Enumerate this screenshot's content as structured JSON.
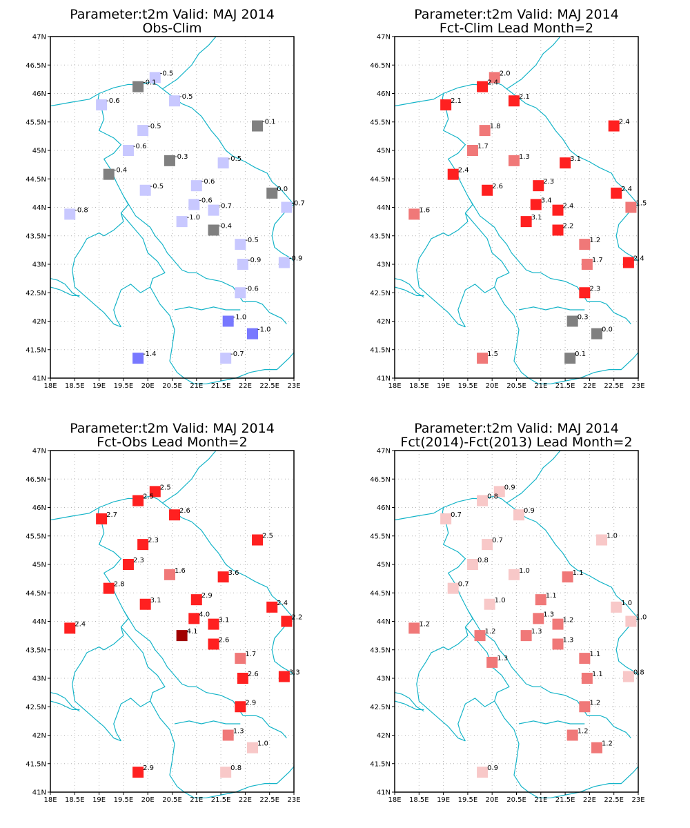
{
  "panels": [
    {
      "title1": "Parameter:t2m Valid: MAJ 2014",
      "title2": "Obs-Clim",
      "stations": [
        {
          "lon": 20.15,
          "lat": 46.28,
          "value": "-0.5",
          "color": "#c8c8ff"
        },
        {
          "lon": 19.8,
          "lat": 46.12,
          "value": "-0.1",
          "color": "#808080"
        },
        {
          "lon": 20.55,
          "lat": 45.87,
          "value": "-0.5",
          "color": "#c8c8ff"
        },
        {
          "lon": 19.05,
          "lat": 45.8,
          "value": "-0.6",
          "color": "#c8c8ff"
        },
        {
          "lon": 22.25,
          "lat": 45.43,
          "value": "-0.1",
          "color": "#808080"
        },
        {
          "lon": 19.9,
          "lat": 45.35,
          "value": "-0.5",
          "color": "#c8c8ff"
        },
        {
          "lon": 19.6,
          "lat": 45.0,
          "value": "-0.6",
          "color": "#c8c8ff"
        },
        {
          "lon": 20.45,
          "lat": 44.82,
          "value": "-0.3",
          "color": "#808080"
        },
        {
          "lon": 21.55,
          "lat": 44.78,
          "value": "-0.5",
          "color": "#c8c8ff"
        },
        {
          "lon": 19.2,
          "lat": 44.58,
          "value": "-0.4",
          "color": "#808080"
        },
        {
          "lon": 21.0,
          "lat": 44.38,
          "value": "-0.6",
          "color": "#c8c8ff"
        },
        {
          "lon": 19.95,
          "lat": 44.3,
          "value": "-0.5",
          "color": "#c8c8ff"
        },
        {
          "lon": 22.55,
          "lat": 44.25,
          "value": "0.0",
          "color": "#808080"
        },
        {
          "lon": 20.95,
          "lat": 44.05,
          "value": "-0.6",
          "color": "#c8c8ff"
        },
        {
          "lon": 22.85,
          "lat": 44.0,
          "value": "-0.7",
          "color": "#c8c8ff"
        },
        {
          "lon": 21.35,
          "lat": 43.95,
          "value": "-0.7",
          "color": "#c8c8ff"
        },
        {
          "lon": 18.4,
          "lat": 43.88,
          "value": "-0.8",
          "color": "#c8c8ff"
        },
        {
          "lon": 20.7,
          "lat": 43.75,
          "value": "-1.0",
          "color": "#c8c8ff"
        },
        {
          "lon": 21.35,
          "lat": 43.6,
          "value": "-0.4",
          "color": "#808080"
        },
        {
          "lon": 21.9,
          "lat": 43.35,
          "value": "-0.5",
          "color": "#c8c8ff"
        },
        {
          "lon": 21.95,
          "lat": 43.0,
          "value": "-0.9",
          "color": "#c8c8ff"
        },
        {
          "lon": 22.8,
          "lat": 43.03,
          "value": "-0.9",
          "color": "#c8c8ff"
        },
        {
          "lon": 21.9,
          "lat": 42.5,
          "value": "-0.6",
          "color": "#c8c8ff"
        },
        {
          "lon": 21.65,
          "lat": 42.0,
          "value": "-1.0",
          "color": "#7878ff"
        },
        {
          "lon": 22.15,
          "lat": 41.78,
          "value": "-1.0",
          "color": "#7878ff"
        },
        {
          "lon": 19.8,
          "lat": 41.35,
          "value": "-1.4",
          "color": "#7878ff"
        },
        {
          "lon": 21.6,
          "lat": 41.35,
          "value": "-0.7",
          "color": "#c8c8ff"
        }
      ]
    },
    {
      "title1": "Parameter:t2m Valid: MAJ 2014",
      "title2": "Fct-Clim Lead Month=2",
      "stations": [
        {
          "lon": 20.05,
          "lat": 46.28,
          "value": "2.0",
          "color": "#f07878"
        },
        {
          "lon": 19.8,
          "lat": 46.12,
          "value": "2.4",
          "color": "#ff2020"
        },
        {
          "lon": 20.45,
          "lat": 45.87,
          "value": "2.1",
          "color": "#ff2020"
        },
        {
          "lon": 19.05,
          "lat": 45.8,
          "value": "2.1",
          "color": "#ff2020"
        },
        {
          "lon": 22.5,
          "lat": 45.43,
          "value": "2.4",
          "color": "#ff2020"
        },
        {
          "lon": 19.85,
          "lat": 45.35,
          "value": "1.8",
          "color": "#f07878"
        },
        {
          "lon": 19.6,
          "lat": 45.0,
          "value": "1.7",
          "color": "#f07878"
        },
        {
          "lon": 20.45,
          "lat": 44.82,
          "value": "1.3",
          "color": "#f07878"
        },
        {
          "lon": 21.5,
          "lat": 44.78,
          "value": "3.1",
          "color": "#ff2020"
        },
        {
          "lon": 19.2,
          "lat": 44.58,
          "value": "2.4",
          "color": "#ff2020"
        },
        {
          "lon": 20.95,
          "lat": 44.38,
          "value": "2.3",
          "color": "#ff2020"
        },
        {
          "lon": 19.9,
          "lat": 44.3,
          "value": "2.6",
          "color": "#ff2020"
        },
        {
          "lon": 22.55,
          "lat": 44.25,
          "value": "2.4",
          "color": "#ff2020"
        },
        {
          "lon": 20.9,
          "lat": 44.05,
          "value": "3.4",
          "color": "#ff2020"
        },
        {
          "lon": 22.85,
          "lat": 44.0,
          "value": "1.5",
          "color": "#f07878"
        },
        {
          "lon": 21.35,
          "lat": 43.95,
          "value": "2.4",
          "color": "#ff2020"
        },
        {
          "lon": 18.4,
          "lat": 43.88,
          "value": "1.6",
          "color": "#f07878"
        },
        {
          "lon": 20.7,
          "lat": 43.75,
          "value": "3.1",
          "color": "#ff2020"
        },
        {
          "lon": 21.35,
          "lat": 43.6,
          "value": "2.2",
          "color": "#ff2020"
        },
        {
          "lon": 21.9,
          "lat": 43.35,
          "value": "1.2",
          "color": "#f07878"
        },
        {
          "lon": 21.95,
          "lat": 43.0,
          "value": "1.7",
          "color": "#f07878"
        },
        {
          "lon": 22.8,
          "lat": 43.03,
          "value": "2.4",
          "color": "#ff2020"
        },
        {
          "lon": 21.9,
          "lat": 42.5,
          "value": "2.3",
          "color": "#ff2020"
        },
        {
          "lon": 21.65,
          "lat": 42.0,
          "value": "0.3",
          "color": "#808080"
        },
        {
          "lon": 22.15,
          "lat": 41.78,
          "value": "0.0",
          "color": "#808080"
        },
        {
          "lon": 19.8,
          "lat": 41.35,
          "value": "1.5",
          "color": "#f07878"
        },
        {
          "lon": 21.6,
          "lat": 41.35,
          "value": "0.1",
          "color": "#808080"
        }
      ]
    },
    {
      "title1": "Parameter:t2m Valid: MAJ 2014",
      "title2": "Fct-Obs Lead Month=2",
      "stations": [
        {
          "lon": 20.15,
          "lat": 46.28,
          "value": "2.5",
          "color": "#ff2020"
        },
        {
          "lon": 19.8,
          "lat": 46.12,
          "value": "2.5",
          "color": "#ff2020"
        },
        {
          "lon": 20.55,
          "lat": 45.87,
          "value": "2.6",
          "color": "#ff2020"
        },
        {
          "lon": 19.05,
          "lat": 45.8,
          "value": "2.7",
          "color": "#ff2020"
        },
        {
          "lon": 22.25,
          "lat": 45.43,
          "value": "2.5",
          "color": "#ff2020"
        },
        {
          "lon": 19.9,
          "lat": 45.35,
          "value": "2.3",
          "color": "#ff2020"
        },
        {
          "lon": 19.6,
          "lat": 45.0,
          "value": "2.3",
          "color": "#ff2020"
        },
        {
          "lon": 20.45,
          "lat": 44.82,
          "value": "1.6",
          "color": "#f07878"
        },
        {
          "lon": 21.55,
          "lat": 44.78,
          "value": "3.6",
          "color": "#ff2020"
        },
        {
          "lon": 19.2,
          "lat": 44.58,
          "value": "2.8",
          "color": "#ff2020"
        },
        {
          "lon": 21.0,
          "lat": 44.38,
          "value": "2.9",
          "color": "#ff2020"
        },
        {
          "lon": 19.95,
          "lat": 44.3,
          "value": "3.1",
          "color": "#ff2020"
        },
        {
          "lon": 22.55,
          "lat": 44.25,
          "value": "2.4",
          "color": "#ff2020"
        },
        {
          "lon": 20.95,
          "lat": 44.05,
          "value": "4.0",
          "color": "#ff2020"
        },
        {
          "lon": 22.85,
          "lat": 44.0,
          "value": "2.2",
          "color": "#ff2020"
        },
        {
          "lon": 21.35,
          "lat": 43.95,
          "value": "3.1",
          "color": "#ff2020"
        },
        {
          "lon": 18.4,
          "lat": 43.88,
          "value": "2.4",
          "color": "#ff2020"
        },
        {
          "lon": 20.7,
          "lat": 43.75,
          "value": "4.1",
          "color": "#a00000"
        },
        {
          "lon": 21.35,
          "lat": 43.6,
          "value": "2.6",
          "color": "#ff2020"
        },
        {
          "lon": 21.9,
          "lat": 43.35,
          "value": "1.7",
          "color": "#f07878"
        },
        {
          "lon": 21.95,
          "lat": 43.0,
          "value": "2.6",
          "color": "#ff2020"
        },
        {
          "lon": 22.8,
          "lat": 43.03,
          "value": "3.3",
          "color": "#ff2020"
        },
        {
          "lon": 21.9,
          "lat": 42.5,
          "value": "2.9",
          "color": "#ff2020"
        },
        {
          "lon": 21.65,
          "lat": 42.0,
          "value": "1.3",
          "color": "#f07878"
        },
        {
          "lon": 22.15,
          "lat": 41.78,
          "value": "1.0",
          "color": "#f8c8c8"
        },
        {
          "lon": 19.8,
          "lat": 41.35,
          "value": "2.9",
          "color": "#ff2020"
        },
        {
          "lon": 21.6,
          "lat": 41.35,
          "value": "0.8",
          "color": "#f8c8c8"
        }
      ]
    },
    {
      "title1": "Parameter:t2m Valid: MAJ 2014",
      "title2": "Fct(2014)-Fct(2013) Lead Month=2",
      "stations": [
        {
          "lon": 20.15,
          "lat": 46.28,
          "value": "0.9",
          "color": "#f8c8c8"
        },
        {
          "lon": 19.8,
          "lat": 46.12,
          "value": "0.8",
          "color": "#f8c8c8"
        },
        {
          "lon": 20.55,
          "lat": 45.87,
          "value": "0.9",
          "color": "#f8c8c8"
        },
        {
          "lon": 19.05,
          "lat": 45.8,
          "value": "0.7",
          "color": "#f8c8c8"
        },
        {
          "lon": 22.25,
          "lat": 45.43,
          "value": "1.0",
          "color": "#f8c8c8"
        },
        {
          "lon": 19.9,
          "lat": 45.35,
          "value": "0.7",
          "color": "#f8c8c8"
        },
        {
          "lon": 19.6,
          "lat": 45.0,
          "value": "0.8",
          "color": "#f8c8c8"
        },
        {
          "lon": 20.45,
          "lat": 44.82,
          "value": "1.0",
          "color": "#f8c8c8"
        },
        {
          "lon": 21.55,
          "lat": 44.78,
          "value": "1.1",
          "color": "#f07878"
        },
        {
          "lon": 19.2,
          "lat": 44.58,
          "value": "0.7",
          "color": "#f8c8c8"
        },
        {
          "lon": 21.0,
          "lat": 44.38,
          "value": "1.1",
          "color": "#f07878"
        },
        {
          "lon": 19.95,
          "lat": 44.3,
          "value": "1.0",
          "color": "#f8c8c8"
        },
        {
          "lon": 22.55,
          "lat": 44.25,
          "value": "1.0",
          "color": "#f8c8c8"
        },
        {
          "lon": 20.95,
          "lat": 44.05,
          "value": "1.3",
          "color": "#f07878"
        },
        {
          "lon": 22.85,
          "lat": 44.0,
          "value": "1.0",
          "color": "#f8c8c8"
        },
        {
          "lon": 21.35,
          "lat": 43.95,
          "value": "1.2",
          "color": "#f07878"
        },
        {
          "lon": 18.4,
          "lat": 43.88,
          "value": "1.2",
          "color": "#f07878"
        },
        {
          "lon": 20.7,
          "lat": 43.75,
          "value": "1.3",
          "color": "#f07878"
        },
        {
          "lon": 19.75,
          "lat": 43.75,
          "value": "1.2",
          "color": "#f07878"
        },
        {
          "lon": 21.35,
          "lat": 43.6,
          "value": "1.3",
          "color": "#f07878"
        },
        {
          "lon": 21.9,
          "lat": 43.35,
          "value": "1.1",
          "color": "#f07878"
        },
        {
          "lon": 20.0,
          "lat": 43.28,
          "value": "1.3",
          "color": "#f07878"
        },
        {
          "lon": 21.95,
          "lat": 43.0,
          "value": "1.1",
          "color": "#f07878"
        },
        {
          "lon": 22.8,
          "lat": 43.03,
          "value": "0.8",
          "color": "#f8c8c8"
        },
        {
          "lon": 21.9,
          "lat": 42.5,
          "value": "1.2",
          "color": "#f07878"
        },
        {
          "lon": 21.65,
          "lat": 42.0,
          "value": "1.2",
          "color": "#f07878"
        },
        {
          "lon": 22.15,
          "lat": 41.78,
          "value": "1.2",
          "color": "#f07878"
        },
        {
          "lon": 19.8,
          "lat": 41.35,
          "value": "0.9",
          "color": "#f8c8c8"
        }
      ]
    }
  ],
  "x_ticks": [
    "18E",
    "18.5E",
    "19E",
    "19.5E",
    "20E",
    "20.5E",
    "21E",
    "21.5E",
    "22E",
    "22.5E",
    "23E"
  ],
  "y_ticks": [
    "41N",
    "41.5N",
    "42N",
    "42.5N",
    "43N",
    "43.5N",
    "44N",
    "44.5N",
    "45N",
    "45.5N",
    "46N",
    "46.5N",
    "47N"
  ],
  "lon_range": [
    18,
    23
  ],
  "lat_range": [
    41,
    47
  ],
  "colors": {
    "border_line": "#14b4c8",
    "grid": "#b4b4b4",
    "frame": "#000000"
  }
}
